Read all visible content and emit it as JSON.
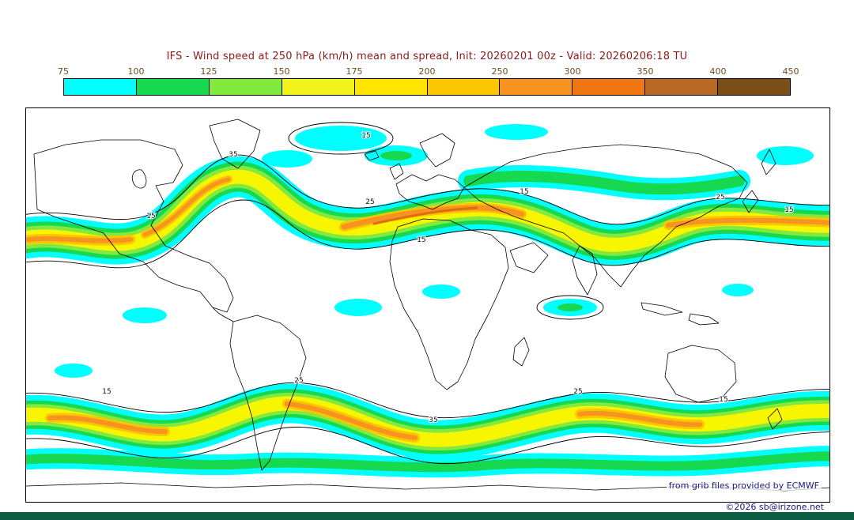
{
  "title": "IFS - Wind speed at 250 hPa (km/h) mean and spread, Init: 20260201 00z - Valid: 20260206:18 TU",
  "colorbar": {
    "tick_labels": [
      "75",
      "100",
      "125",
      "150",
      "175",
      "200",
      "250",
      "300",
      "350",
      "400",
      "450"
    ],
    "colors": [
      "#00ffff",
      "#17d94f",
      "#82e93f",
      "#f2f21c",
      "#ffe400",
      "#fbc500",
      "#f79320",
      "#ef7612",
      "#b96a22",
      "#7a4f16"
    ]
  },
  "map": {
    "contour_labels": [
      "15",
      "25",
      "35"
    ]
  },
  "footer": {
    "credit_line1": "from grib files provided by ECMWF",
    "credit_line2": "©2026 sb@irizone.net"
  },
  "chart_data": {
    "type": "heatmap",
    "title": "IFS - Wind speed at 250 hPa (km/h) mean and spread",
    "init": "20260201 00z",
    "valid": "20260206:18 TU",
    "units": "km/h",
    "region": "global world map",
    "legend_position": "top",
    "fill_levels": [
      75,
      100,
      125,
      150,
      175,
      200,
      250,
      300,
      350,
      400,
      450
    ],
    "fill_colors": [
      "#00ffff",
      "#17d94f",
      "#82e93f",
      "#f2f21c",
      "#ffe400",
      "#fbc500",
      "#f79320",
      "#ef7612",
      "#b96a22",
      "#7a4f16"
    ],
    "spread_contour_levels": [
      15,
      25,
      35
    ],
    "notes": "Shaded wavy bands depict jet-stream wind speed maxima across both hemispheres; thin black contours over the shading are ensemble spread labeled 15/25/35."
  }
}
